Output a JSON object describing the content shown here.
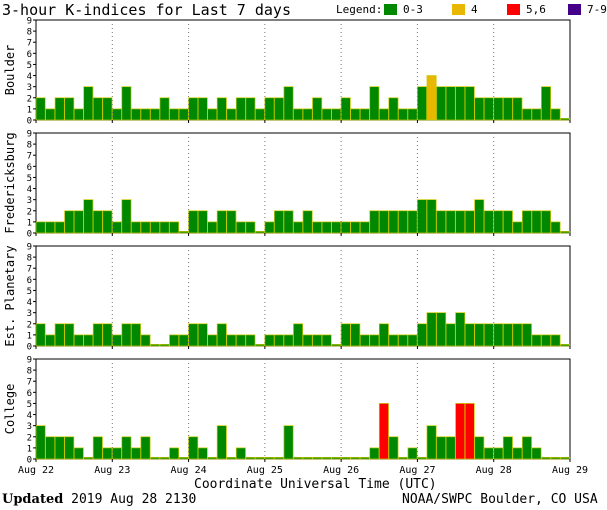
{
  "title": "3-hour K-indices for Last 7 days",
  "legend": {
    "label": "Legend:",
    "items": [
      {
        "label": "0-3",
        "color": "#008800"
      },
      {
        "label": "4",
        "color": "#e8b800"
      },
      {
        "label": "5,6",
        "color": "#ff0000"
      },
      {
        "label": "7-9",
        "color": "#440088"
      }
    ]
  },
  "xlabel": "Coordinate Universal Time (UTC)",
  "footer": {
    "updated_label": "Updated",
    "updated_value": "2019 Aug 28 2130",
    "credit": "NOAA/SWPC Boulder, CO USA"
  },
  "chart_data": {
    "type": "bar",
    "x_tick_labels": [
      "Aug 22",
      "Aug 23",
      "Aug 24",
      "Aug 25",
      "Aug 26",
      "Aug 27",
      "Aug 28",
      "Aug 29"
    ],
    "y_ticks": [
      0,
      1,
      2,
      3,
      4,
      5,
      6,
      7,
      8,
      9
    ],
    "ylim": [
      0,
      9
    ],
    "intervals_per_day": 8,
    "grid": "dotted vertical at day boundaries",
    "series": [
      {
        "name": "Boulder",
        "values": [
          2,
          1,
          2,
          2,
          1,
          3,
          2,
          2,
          1,
          3,
          1,
          1,
          1,
          2,
          1,
          1,
          2,
          2,
          1,
          2,
          1,
          2,
          2,
          1,
          2,
          2,
          3,
          1,
          1,
          2,
          1,
          1,
          2,
          1,
          1,
          3,
          1,
          2,
          1,
          1,
          3,
          4,
          3,
          3,
          3,
          3,
          2,
          2,
          2,
          2,
          2,
          1,
          1,
          3,
          1,
          0
        ]
      },
      {
        "name": "Fredericksburg",
        "values": [
          1,
          1,
          1,
          2,
          2,
          3,
          2,
          2,
          1,
          3,
          1,
          1,
          1,
          1,
          1,
          0,
          2,
          2,
          1,
          2,
          2,
          1,
          1,
          0,
          1,
          2,
          2,
          1,
          2,
          1,
          1,
          1,
          1,
          1,
          1,
          2,
          2,
          2,
          2,
          2,
          3,
          3,
          2,
          2,
          2,
          2,
          3,
          2,
          2,
          2,
          1,
          2,
          2,
          2,
          1,
          0
        ]
      },
      {
        "name": "Est. Planetary",
        "values": [
          2,
          1,
          2,
          2,
          1,
          1,
          2,
          2,
          1,
          2,
          2,
          1,
          0,
          0,
          1,
          1,
          2,
          2,
          1,
          2,
          1,
          1,
          1,
          0,
          1,
          1,
          1,
          2,
          1,
          1,
          1,
          0,
          2,
          2,
          1,
          1,
          2,
          1,
          1,
          1,
          2,
          3,
          3,
          2,
          3,
          2,
          2,
          2,
          2,
          2,
          2,
          2,
          1,
          1,
          1,
          0
        ]
      },
      {
        "name": "College",
        "values": [
          3,
          2,
          2,
          2,
          1,
          0,
          2,
          1,
          1,
          2,
          1,
          2,
          0,
          0,
          1,
          0,
          2,
          1,
          0,
          3,
          0,
          1,
          0,
          0,
          0,
          0,
          3,
          0,
          0,
          0,
          0,
          0,
          0,
          0,
          0,
          1,
          5,
          2,
          0,
          1,
          0,
          3,
          2,
          2,
          5,
          5,
          2,
          1,
          1,
          2,
          1,
          2,
          1,
          0,
          0,
          0
        ]
      }
    ]
  }
}
